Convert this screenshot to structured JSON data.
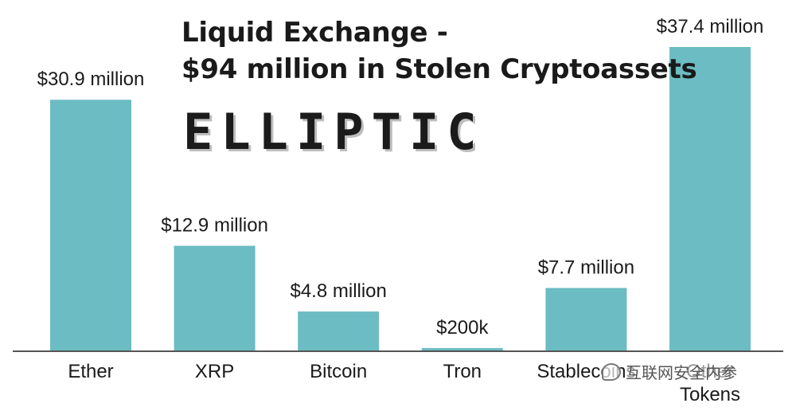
{
  "title": {
    "line1": "Liquid Exchange -",
    "line2": "$94 million in Stolen Cryptoassets"
  },
  "logo": {
    "text": "ELLIPTIC"
  },
  "watermark": {
    "text": "互联网安全内参",
    "icon": "wechat-icon"
  },
  "colors": {
    "bar": "#6cbcc3",
    "axis": "#555555",
    "text": "#1a1a1a"
  },
  "chart_data": {
    "type": "bar",
    "categories": [
      "Ether",
      "XRP",
      "Bitcoin",
      "Tron",
      "Stablecoins",
      "Other Tokens"
    ],
    "category_lines": [
      [
        "Ether"
      ],
      [
        "XRP"
      ],
      [
        "Bitcoin"
      ],
      [
        "Tron"
      ],
      [
        "Stablecoins"
      ],
      [
        "Other",
        "Tokens"
      ]
    ],
    "values": [
      30.9,
      12.9,
      4.8,
      0.2,
      7.7,
      37.4
    ],
    "data_labels": [
      "$30.9 million",
      "$12.9 million",
      "$4.8 million",
      "$200k",
      "$7.7 million",
      "$37.4 million"
    ],
    "unit": "million USD",
    "ylim": [
      0,
      37.4
    ],
    "grid": false,
    "legend": "none"
  }
}
